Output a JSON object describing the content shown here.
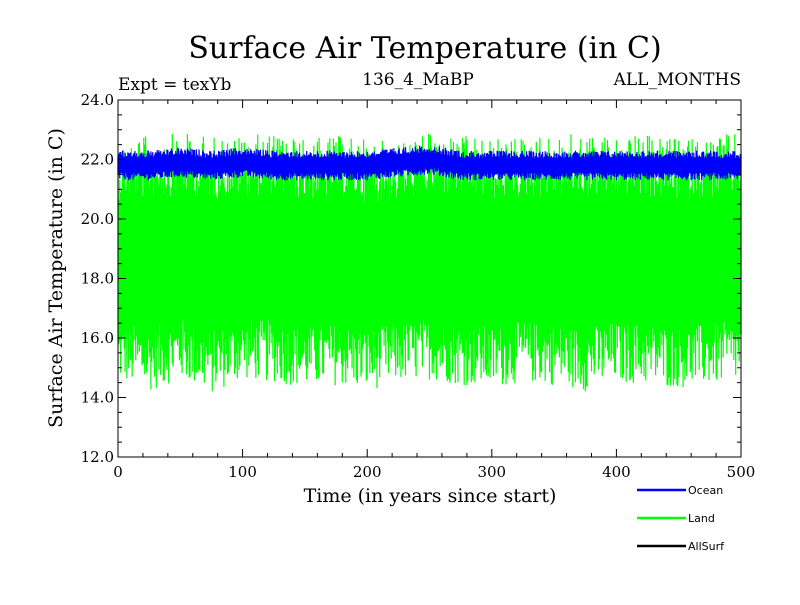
{
  "chart_data": {
    "type": "line",
    "title": "Surface Air Temperature (in C)",
    "annotations": {
      "experiment": "Expt = texYb",
      "period": "136_4_MaBP",
      "months": "ALL_MONTHS"
    },
    "xlabel": "Time (in years since start)",
    "ylabel": "Surface Air Temperature (in C)",
    "xlim": [
      0,
      500
    ],
    "ylim": [
      12.0,
      24.0
    ],
    "x_ticks": [
      "0",
      "100",
      "200",
      "300",
      "400",
      "500"
    ],
    "y_ticks": [
      "12.0",
      "14.0",
      "16.0",
      "18.0",
      "20.0",
      "22.0",
      "24.0"
    ],
    "grid": false,
    "legend_position": "bottom-right",
    "series": [
      {
        "name": "Ocean",
        "color": "#0000ff",
        "band_min": [
          21.3,
          21.3,
          21.4,
          21.3,
          21.4,
          21.3,
          21.3,
          21.3,
          21.3,
          21.4,
          21.5,
          21.3,
          21.3,
          21.3,
          21.3,
          21.3,
          21.3,
          21.3,
          21.3,
          21.3,
          21.3
        ],
        "band_max": [
          22.3,
          22.3,
          22.4,
          22.3,
          22.4,
          22.3,
          22.3,
          22.3,
          22.3,
          22.4,
          22.5,
          22.3,
          22.3,
          22.3,
          22.3,
          22.3,
          22.3,
          22.3,
          22.3,
          22.3,
          22.3
        ],
        "x": [
          0,
          25,
          50,
          75,
          100,
          125,
          150,
          175,
          200,
          225,
          250,
          275,
          300,
          325,
          350,
          375,
          400,
          425,
          450,
          475,
          500
        ]
      },
      {
        "name": "Land",
        "color": "#00ff00",
        "band_min": [
          14.5,
          14.2,
          14.6,
          14.1,
          14.6,
          14.5,
          14.3,
          14.4,
          14.2,
          14.5,
          14.6,
          14.4,
          14.3,
          14.5,
          14.4,
          14.2,
          14.5,
          14.4,
          14.3,
          14.4,
          14.5
        ],
        "band_max": [
          22.7,
          22.8,
          22.9,
          22.8,
          22.8,
          22.9,
          22.7,
          22.8,
          22.7,
          22.6,
          22.9,
          22.8,
          22.7,
          22.8,
          22.8,
          22.9,
          22.8,
          22.8,
          22.7,
          22.8,
          22.9
        ],
        "x": [
          0,
          25,
          50,
          75,
          100,
          125,
          150,
          175,
          200,
          225,
          250,
          275,
          300,
          325,
          350,
          375,
          400,
          425,
          450,
          475,
          500
        ]
      },
      {
        "name": "AllSurf",
        "color": "#000000",
        "band_min": [],
        "band_max": [],
        "x": []
      }
    ]
  }
}
